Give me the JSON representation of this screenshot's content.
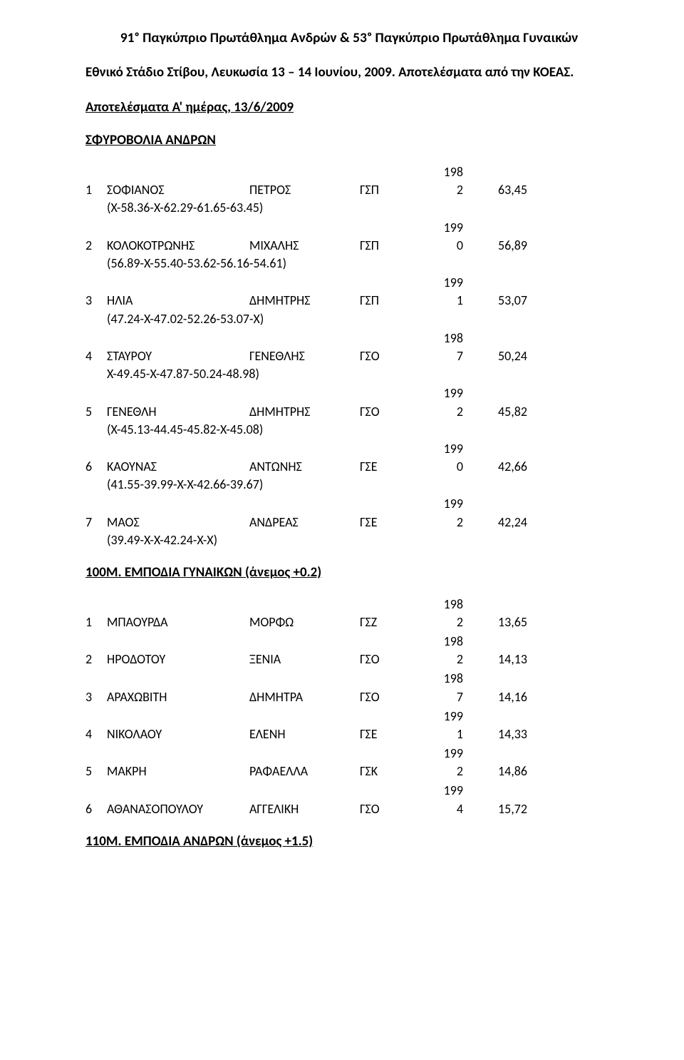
{
  "doc": {
    "title": "91ᵒ Παγκύπριο Πρωτάθλημα Ανδρών & 53ᵒ Παγκύπριο Πρωτάθλημα Γυναικών",
    "subtitle": "Εθνικό Στάδιο Στίβου, Λευκωσία 13 – 14 Ιουνίου, 2009. Αποτελέσματα από την ΚΟΕΑΣ."
  },
  "sections": {
    "sfyrobolia": {
      "heading_day": "Αποτελέσματα Α' ημέρας, 13/6/2009",
      "heading": "ΣΦΥΡΟΒΟΛΙΑ ΑΝΔΡΩΝ",
      "rows": [
        {
          "rank": "1",
          "surname": "ΣΟΦΙΑΝΟΣ",
          "name": "ΠΕΤΡΟΣ",
          "club": "ΓΣΠ",
          "year_prefix": "198",
          "year_suffix": "2",
          "mark": "63,45",
          "detail": "(Χ-58.36-Χ-62.29-61.65-63.45)"
        },
        {
          "rank": "2",
          "surname": "ΚΟΛΟΚΟΤΡΩΝΗΣ",
          "name": "ΜΙΧΑΛΗΣ",
          "club": "ΓΣΠ",
          "year_prefix": "199",
          "year_suffix": "0",
          "mark": "56,89",
          "detail": "(56.89-Χ-55.40-53.62-56.16-54.61)"
        },
        {
          "rank": "3",
          "surname": "ΗΛΙΑ",
          "name": "ΔΗΜΗΤΡΗΣ",
          "club": "ΓΣΠ",
          "year_prefix": "199",
          "year_suffix": "1",
          "mark": "53,07",
          "detail": "(47.24-Χ-47.02-52.26-53.07-Χ)"
        },
        {
          "rank": "4",
          "surname": "ΣΤΑΥΡΟΥ",
          "name": "ΓΕΝΕΘΛΗΣ",
          "club": "ΓΣΟ",
          "year_prefix": "198",
          "year_suffix": "7",
          "mark": "50,24",
          "detail": "Χ-49.45-Χ-47.87-50.24-48.98)"
        },
        {
          "rank": "5",
          "surname": "ΓΕΝΕΘΛΗ",
          "name": "ΔΗΜΗΤΡΗΣ",
          "club": "ΓΣΟ",
          "year_prefix": "199",
          "year_suffix": "2",
          "mark": "45,82",
          "detail": "(Χ-45.13-44.45-45.82-Χ-45.08)"
        },
        {
          "rank": "6",
          "surname": "ΚΑΟΥΝΑΣ",
          "name": "ΑΝΤΩΝΗΣ",
          "club": "ΓΣΕ",
          "year_prefix": "199",
          "year_suffix": "0",
          "mark": "42,66",
          "detail": "(41.55-39.99-Χ-Χ-42.66-39.67)"
        },
        {
          "rank": "7",
          "surname": "ΜΑΟΣ",
          "name": "ΑΝΔΡΕΑΣ",
          "club": "ΓΣΕ",
          "year_prefix": "199",
          "year_suffix": "2",
          "mark": "42,24",
          "detail": "(39.49-Χ-Χ-42.24-Χ-Χ)"
        }
      ]
    },
    "empodia_g": {
      "heading": "100Μ. ΕΜΠΟΔΙΑ ΓΥΝΑΙΚΩΝ (άνεμος +0.2)",
      "rows": [
        {
          "rank": "1",
          "surname": "ΜΠΑΟΥΡΔΑ",
          "name": "ΜΟΡΦΩ",
          "club": "ΓΣΖ",
          "year_prefix": "198",
          "year_suffix": "2",
          "mark": "13,65"
        },
        {
          "rank": "2",
          "surname": "ΗΡΟΔΟΤΟΥ",
          "name": "ΞΕΝΙΑ",
          "club": "ΓΣΟ",
          "year_prefix": "198",
          "year_suffix": "2",
          "mark": "14,13"
        },
        {
          "rank": "3",
          "surname": "ΑΡΑΧΩΒΙΤΗ",
          "name": "ΔΗΜΗΤΡΑ",
          "club": "ΓΣΟ",
          "year_prefix": "198",
          "year_suffix": "7",
          "mark": "14,16"
        },
        {
          "rank": "4",
          "surname": "ΝΙΚΟΛΑΟΥ",
          "name": "ΕΛΕΝΗ",
          "club": "ΓΣΕ",
          "year_prefix": "199",
          "year_suffix": "1",
          "mark": "14,33"
        },
        {
          "rank": "5",
          "surname": "ΜΑΚΡΗ",
          "name": "ΡΑΦΑΕΛΛΑ",
          "club": "ΓΣΚ",
          "year_prefix": "199",
          "year_suffix": "2",
          "mark": "14,86"
        },
        {
          "rank": "6",
          "surname": "ΑΘΑΝΑΣΟΠΟΥΛΟΥ",
          "name": "ΑΓΓΕΛΙΚΗ",
          "club": "ΓΣΟ",
          "year_prefix": "199",
          "year_suffix": "4",
          "mark": "15,72"
        }
      ]
    },
    "empodia_a": {
      "heading": "110Μ. ΕΜΠΟΔΙΑ ΑΝΔΡΩΝ (άνεμος +1.5)"
    }
  }
}
